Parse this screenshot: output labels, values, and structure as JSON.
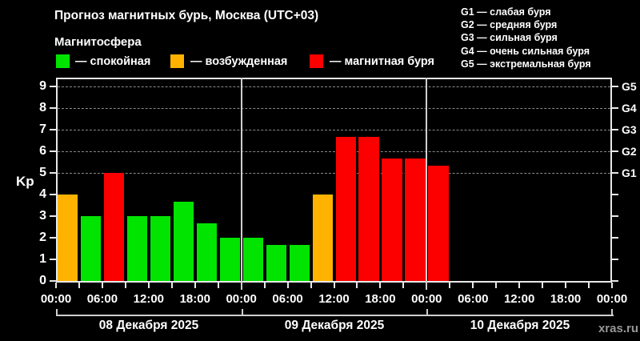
{
  "title": "Прогноз магнитных бурь, Москва (UTC+03)",
  "subtitle": "Магнитосфера",
  "colors": {
    "quiet": "#00e400",
    "disturbed": "#ffb300",
    "storm": "#fc0000",
    "axis": "#e8e8e8",
    "grid": "#8a8a8a",
    "separator": "#cfcfcf",
    "background": "#000000",
    "watermark_text": "#979797"
  },
  "legend": [
    {
      "status": "quiet",
      "label": "— спокойная"
    },
    {
      "status": "disturbed",
      "label": "— возбужденная"
    },
    {
      "status": "storm",
      "label": "— магнитная буря"
    }
  ],
  "g_scale": [
    "G1 — слабая буря",
    "G2 — средняя буря",
    "G3 — сильная буря",
    "G4 — очень сильная буря",
    "G5 — экстремальная буря"
  ],
  "watermark": "xras.ru",
  "chart_data": {
    "type": "bar",
    "title": "Прогноз магнитных бурь, Москва (UTC+03)",
    "ylabel": "Kp",
    "ylim": [
      0,
      9.4
    ],
    "y_ticks": [
      0,
      1,
      2,
      3,
      4,
      5,
      6,
      7,
      8,
      9
    ],
    "grid_levels": [
      5,
      6,
      7,
      8,
      9
    ],
    "right_axis_labels": [
      {
        "kp": 5,
        "label": "G1"
      },
      {
        "kp": 6,
        "label": "G2"
      },
      {
        "kp": 7,
        "label": "G3"
      },
      {
        "kp": 8,
        "label": "G4"
      },
      {
        "kp": 9,
        "label": "G5"
      }
    ],
    "hours_per_bar": 3,
    "time_tick_labels": [
      "00:00",
      "06:00",
      "12:00",
      "18:00"
    ],
    "end_time_label": "00:00",
    "days": [
      {
        "date": "08 Декабря 2025",
        "values": [
          4,
          3,
          5,
          3,
          3,
          3.67,
          2.67,
          2
        ],
        "status": [
          "disturbed",
          "quiet",
          "storm",
          "quiet",
          "quiet",
          "quiet",
          "quiet",
          "quiet"
        ]
      },
      {
        "date": "09 Декабря 2025",
        "values": [
          2,
          1.67,
          1.67,
          4,
          6.67,
          6.67,
          5.67,
          5.67
        ],
        "status": [
          "quiet",
          "quiet",
          "quiet",
          "disturbed",
          "storm",
          "storm",
          "storm",
          "storm"
        ]
      },
      {
        "date": "10 Декабря 2025",
        "values": [
          5.33,
          null,
          null,
          null,
          null,
          null,
          null,
          null
        ],
        "status": [
          "storm",
          null,
          null,
          null,
          null,
          null,
          null,
          null
        ]
      }
    ],
    "legend_position": "top-left",
    "grid": "dashed, levels 5-9 only"
  }
}
